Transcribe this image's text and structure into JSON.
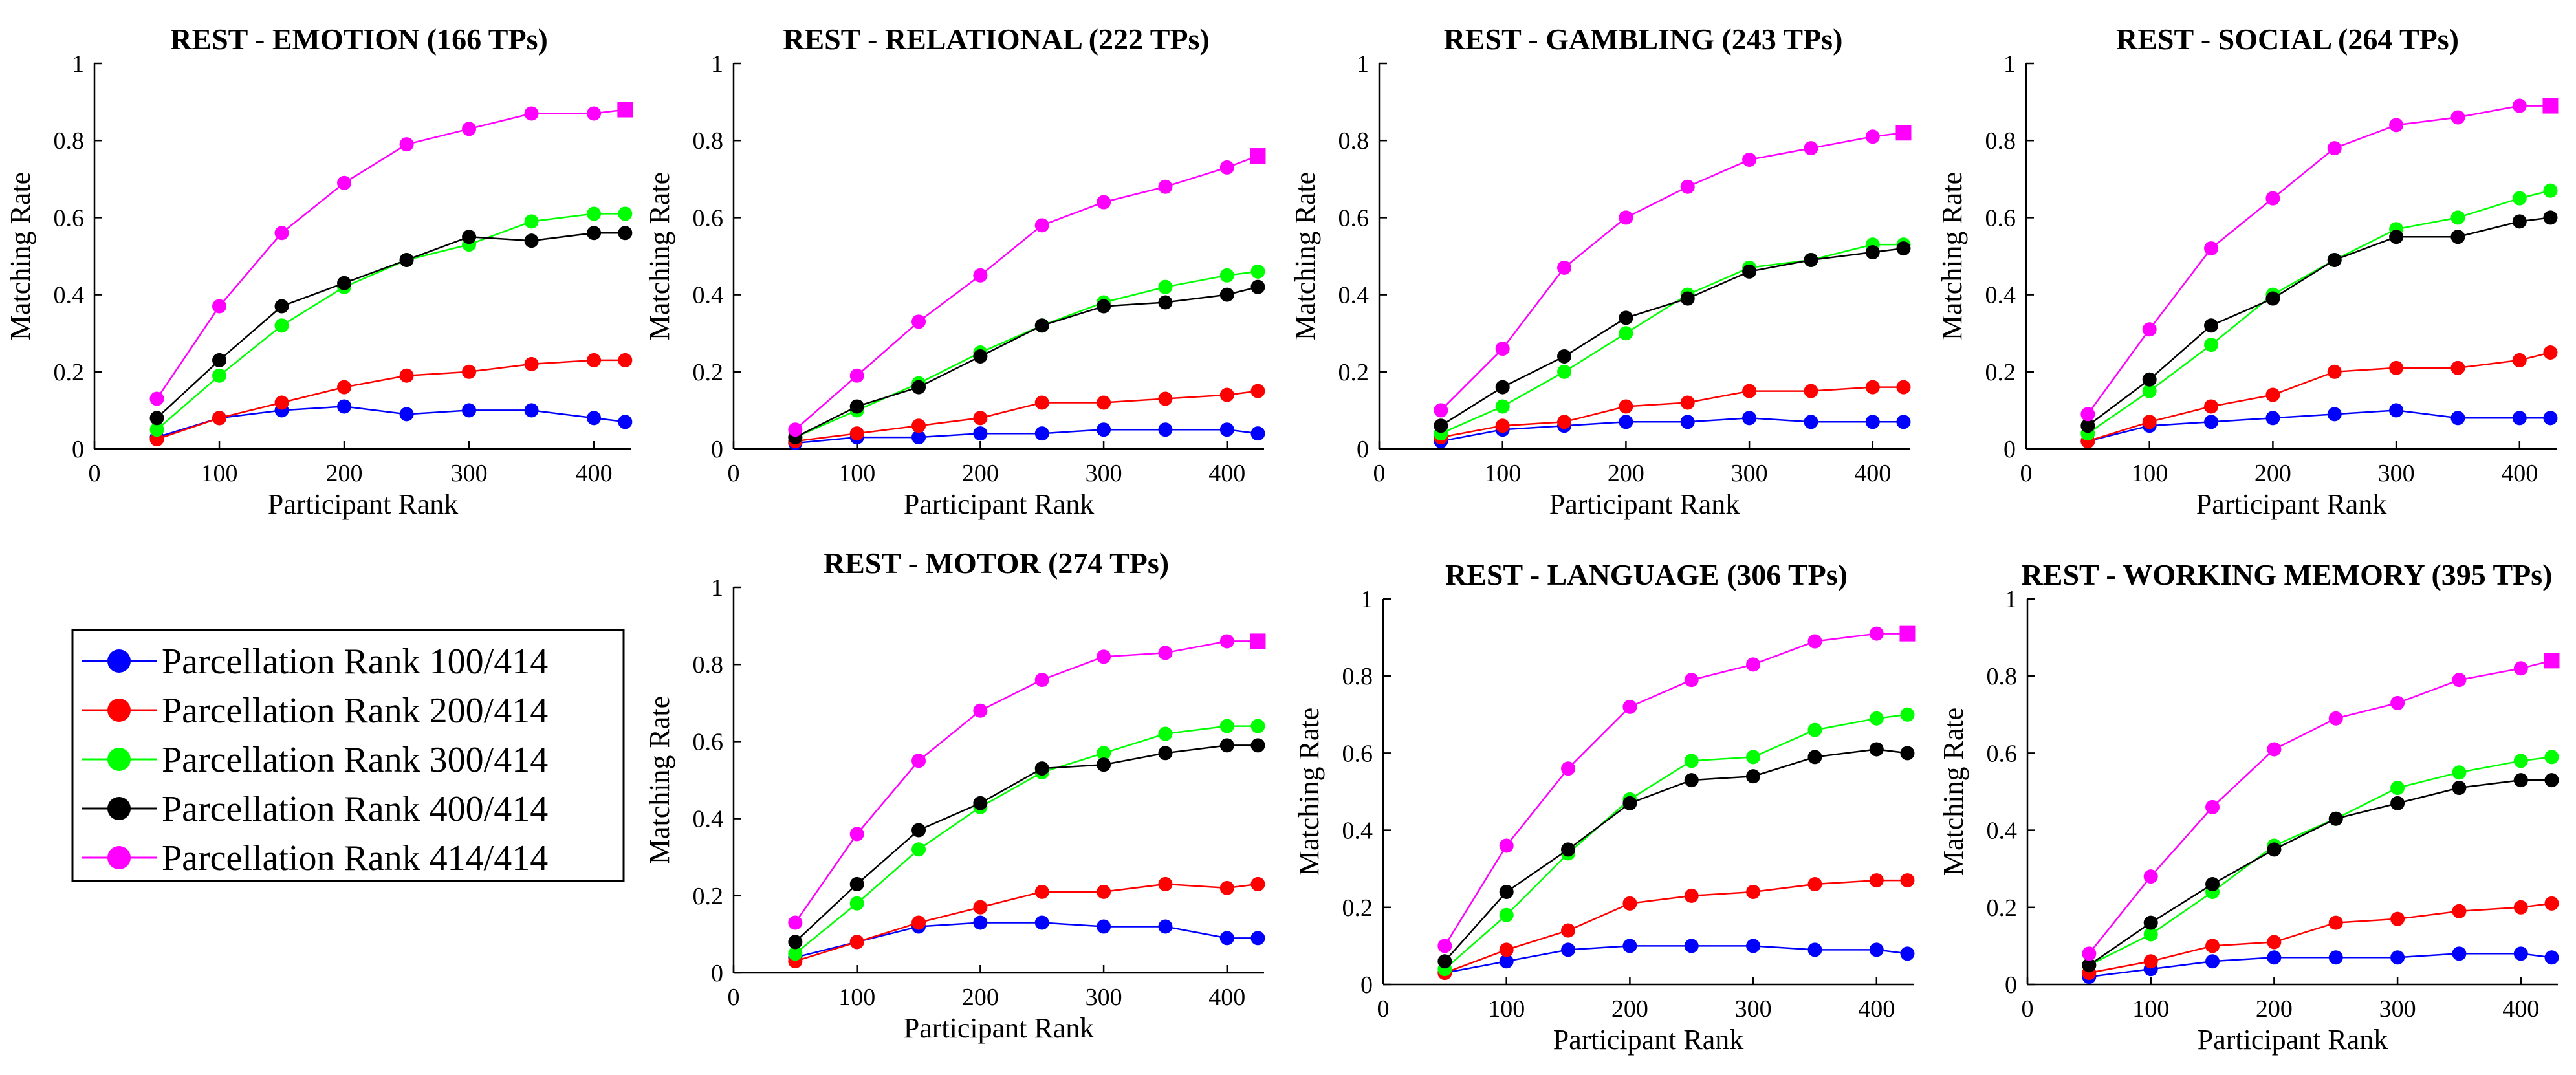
{
  "figure": {
    "legend": [
      {
        "label": "Parcellation Rank 100/414",
        "color": "#0000ff"
      },
      {
        "label": "Parcellation Rank 200/414",
        "color": "#ff0000"
      },
      {
        "label": "Parcellation Rank 300/414",
        "color": "#00ff00"
      },
      {
        "label": "Parcellation Rank 400/414",
        "color": "#000000"
      },
      {
        "label": "Parcellation Rank 414/414",
        "color": "#ff00ff"
      }
    ]
  },
  "chart_data": [
    {
      "type": "line",
      "title": "REST - EMOTION (166 TPs)",
      "xlabel": "Participant Rank",
      "ylabel": "Matching Rate",
      "xlim": [
        0,
        430
      ],
      "ylim": [
        0,
        1
      ],
      "xticks": [
        0,
        100,
        200,
        300,
        400
      ],
      "yticks": [
        0,
        0.2,
        0.4,
        0.6,
        0.8,
        1
      ],
      "x": [
        50,
        100,
        150,
        200,
        250,
        300,
        350,
        400,
        425
      ],
      "series": [
        {
          "name": "Parcellation Rank 100/414",
          "values": [
            0.03,
            0.08,
            0.1,
            0.11,
            0.09,
            0.1,
            0.1,
            0.08,
            0.07
          ]
        },
        {
          "name": "Parcellation Rank 200/414",
          "values": [
            0.025,
            0.08,
            0.12,
            0.16,
            0.19,
            0.2,
            0.22,
            0.23,
            0.23
          ]
        },
        {
          "name": "Parcellation Rank 300/414",
          "values": [
            0.05,
            0.19,
            0.32,
            0.42,
            0.49,
            0.53,
            0.59,
            0.61,
            0.61
          ]
        },
        {
          "name": "Parcellation Rank 400/414",
          "values": [
            0.08,
            0.23,
            0.37,
            0.43,
            0.49,
            0.55,
            0.54,
            0.56,
            0.56
          ]
        },
        {
          "name": "Parcellation Rank 414/414",
          "values": [
            0.13,
            0.37,
            0.56,
            0.69,
            0.79,
            0.83,
            0.87,
            0.87,
            0.88
          ]
        }
      ]
    },
    {
      "type": "line",
      "title": "REST - RELATIONAL (222 TPs)",
      "xlabel": "Participant Rank",
      "ylabel": "Matching Rate",
      "xlim": [
        0,
        430
      ],
      "ylim": [
        0,
        1
      ],
      "xticks": [
        0,
        100,
        200,
        300,
        400
      ],
      "yticks": [
        0,
        0.2,
        0.4,
        0.6,
        0.8,
        1
      ],
      "x": [
        50,
        100,
        150,
        200,
        250,
        300,
        350,
        400,
        425
      ],
      "series": [
        {
          "name": "Parcellation Rank 100/414",
          "values": [
            0.015,
            0.03,
            0.03,
            0.04,
            0.04,
            0.05,
            0.05,
            0.05,
            0.04
          ]
        },
        {
          "name": "Parcellation Rank 200/414",
          "values": [
            0.02,
            0.04,
            0.06,
            0.08,
            0.12,
            0.12,
            0.13,
            0.14,
            0.15
          ]
        },
        {
          "name": "Parcellation Rank 300/414",
          "values": [
            0.03,
            0.1,
            0.17,
            0.25,
            0.32,
            0.38,
            0.42,
            0.45,
            0.46
          ]
        },
        {
          "name": "Parcellation Rank 400/414",
          "values": [
            0.03,
            0.11,
            0.16,
            0.24,
            0.32,
            0.37,
            0.38,
            0.4,
            0.42
          ]
        },
        {
          "name": "Parcellation Rank 414/414",
          "values": [
            0.05,
            0.19,
            0.33,
            0.45,
            0.58,
            0.64,
            0.68,
            0.73,
            0.76
          ]
        }
      ]
    },
    {
      "type": "line",
      "title": "REST - GAMBLING (243 TPs)",
      "xlabel": "Participant Rank",
      "ylabel": "Matching Rate",
      "xlim": [
        0,
        430
      ],
      "ylim": [
        0,
        1
      ],
      "xticks": [
        0,
        100,
        200,
        300,
        400
      ],
      "yticks": [
        0,
        0.2,
        0.4,
        0.6,
        0.8,
        1
      ],
      "x": [
        50,
        100,
        150,
        200,
        250,
        300,
        350,
        400,
        425
      ],
      "series": [
        {
          "name": "Parcellation Rank 100/414",
          "values": [
            0.02,
            0.05,
            0.06,
            0.07,
            0.07,
            0.08,
            0.07,
            0.07,
            0.07
          ]
        },
        {
          "name": "Parcellation Rank 200/414",
          "values": [
            0.03,
            0.06,
            0.07,
            0.11,
            0.12,
            0.15,
            0.15,
            0.16,
            0.16
          ]
        },
        {
          "name": "Parcellation Rank 300/414",
          "values": [
            0.04,
            0.11,
            0.2,
            0.3,
            0.4,
            0.47,
            0.49,
            0.53,
            0.53
          ]
        },
        {
          "name": "Parcellation Rank 400/414",
          "values": [
            0.06,
            0.16,
            0.24,
            0.34,
            0.39,
            0.46,
            0.49,
            0.51,
            0.52
          ]
        },
        {
          "name": "Parcellation Rank 414/414",
          "values": [
            0.1,
            0.26,
            0.47,
            0.6,
            0.68,
            0.75,
            0.78,
            0.81,
            0.82
          ]
        }
      ]
    },
    {
      "type": "line",
      "title": "REST - SOCIAL (264 TPs)",
      "xlabel": "Participant Rank",
      "ylabel": "Matching Rate",
      "xlim": [
        0,
        430
      ],
      "ylim": [
        0,
        1
      ],
      "xticks": [
        0,
        100,
        200,
        300,
        400
      ],
      "yticks": [
        0,
        0.2,
        0.4,
        0.6,
        0.8,
        1
      ],
      "x": [
        50,
        100,
        150,
        200,
        250,
        300,
        350,
        400,
        425
      ],
      "series": [
        {
          "name": "Parcellation Rank 100/414",
          "values": [
            0.02,
            0.06,
            0.07,
            0.08,
            0.09,
            0.1,
            0.08,
            0.08,
            0.08
          ]
        },
        {
          "name": "Parcellation Rank 200/414",
          "values": [
            0.02,
            0.07,
            0.11,
            0.14,
            0.2,
            0.21,
            0.21,
            0.23,
            0.25
          ]
        },
        {
          "name": "Parcellation Rank 300/414",
          "values": [
            0.04,
            0.15,
            0.27,
            0.4,
            0.49,
            0.57,
            0.6,
            0.65,
            0.67
          ]
        },
        {
          "name": "Parcellation Rank 400/414",
          "values": [
            0.06,
            0.18,
            0.32,
            0.39,
            0.49,
            0.55,
            0.55,
            0.59,
            0.6
          ]
        },
        {
          "name": "Parcellation Rank 414/414",
          "values": [
            0.09,
            0.31,
            0.52,
            0.65,
            0.78,
            0.84,
            0.86,
            0.89,
            0.89
          ]
        }
      ]
    },
    {
      "type": "line",
      "title": "REST - MOTOR (274 TPs)",
      "xlabel": "Participant Rank",
      "ylabel": "Matching Rate",
      "xlim": [
        0,
        430
      ],
      "ylim": [
        0,
        1
      ],
      "xticks": [
        0,
        100,
        200,
        300,
        400
      ],
      "yticks": [
        0,
        0.2,
        0.4,
        0.6,
        0.8,
        1
      ],
      "x": [
        50,
        100,
        150,
        200,
        250,
        300,
        350,
        400,
        425
      ],
      "series": [
        {
          "name": "Parcellation Rank 100/414",
          "values": [
            0.04,
            0.08,
            0.12,
            0.13,
            0.13,
            0.12,
            0.12,
            0.09,
            0.09
          ]
        },
        {
          "name": "Parcellation Rank 200/414",
          "values": [
            0.03,
            0.08,
            0.13,
            0.17,
            0.21,
            0.21,
            0.23,
            0.22,
            0.23
          ]
        },
        {
          "name": "Parcellation Rank 300/414",
          "values": [
            0.05,
            0.18,
            0.32,
            0.43,
            0.52,
            0.57,
            0.62,
            0.64,
            0.64
          ]
        },
        {
          "name": "Parcellation Rank 400/414",
          "values": [
            0.08,
            0.23,
            0.37,
            0.44,
            0.53,
            0.54,
            0.57,
            0.59,
            0.59
          ]
        },
        {
          "name": "Parcellation Rank 414/414",
          "values": [
            0.13,
            0.36,
            0.55,
            0.68,
            0.76,
            0.82,
            0.83,
            0.86,
            0.86
          ]
        }
      ]
    },
    {
      "type": "line",
      "title": "REST - LANGUAGE (306 TPs)",
      "xlabel": "Participant Rank",
      "ylabel": "Matching Rate",
      "xlim": [
        0,
        430
      ],
      "ylim": [
        0,
        1
      ],
      "xticks": [
        0,
        100,
        200,
        300,
        400
      ],
      "yticks": [
        0,
        0.2,
        0.4,
        0.6,
        0.8,
        1
      ],
      "x": [
        50,
        100,
        150,
        200,
        250,
        300,
        350,
        400,
        425
      ],
      "series": [
        {
          "name": "Parcellation Rank 100/414",
          "values": [
            0.03,
            0.06,
            0.09,
            0.1,
            0.1,
            0.1,
            0.09,
            0.09,
            0.08
          ]
        },
        {
          "name": "Parcellation Rank 200/414",
          "values": [
            0.03,
            0.09,
            0.14,
            0.21,
            0.23,
            0.24,
            0.26,
            0.27,
            0.27
          ]
        },
        {
          "name": "Parcellation Rank 300/414",
          "values": [
            0.04,
            0.18,
            0.34,
            0.48,
            0.58,
            0.59,
            0.66,
            0.69,
            0.7
          ]
        },
        {
          "name": "Parcellation Rank 400/414",
          "values": [
            0.06,
            0.24,
            0.35,
            0.47,
            0.53,
            0.54,
            0.59,
            0.61,
            0.6
          ]
        },
        {
          "name": "Parcellation Rank 414/414",
          "values": [
            0.1,
            0.36,
            0.56,
            0.72,
            0.79,
            0.83,
            0.89,
            0.91,
            0.91
          ]
        }
      ]
    },
    {
      "type": "line",
      "title": "REST - WORKING MEMORY (395 TPs)",
      "xlabel": "Participant Rank",
      "ylabel": "Matching Rate",
      "xlim": [
        0,
        430
      ],
      "ylim": [
        0,
        1
      ],
      "xticks": [
        0,
        100,
        200,
        300,
        400
      ],
      "yticks": [
        0,
        0.2,
        0.4,
        0.6,
        0.8,
        1
      ],
      "x": [
        50,
        100,
        150,
        200,
        250,
        300,
        350,
        400,
        425
      ],
      "series": [
        {
          "name": "Parcellation Rank 100/414",
          "values": [
            0.02,
            0.04,
            0.06,
            0.07,
            0.07,
            0.07,
            0.08,
            0.08,
            0.07
          ]
        },
        {
          "name": "Parcellation Rank 200/414",
          "values": [
            0.03,
            0.06,
            0.1,
            0.11,
            0.16,
            0.17,
            0.19,
            0.2,
            0.21
          ]
        },
        {
          "name": "Parcellation Rank 300/414",
          "values": [
            0.05,
            0.13,
            0.24,
            0.36,
            0.43,
            0.51,
            0.55,
            0.58,
            0.59
          ]
        },
        {
          "name": "Parcellation Rank 400/414",
          "values": [
            0.05,
            0.16,
            0.26,
            0.35,
            0.43,
            0.47,
            0.51,
            0.53,
            0.53
          ]
        },
        {
          "name": "Parcellation Rank 414/414",
          "values": [
            0.08,
            0.28,
            0.46,
            0.61,
            0.69,
            0.73,
            0.79,
            0.82,
            0.84
          ]
        }
      ]
    }
  ]
}
